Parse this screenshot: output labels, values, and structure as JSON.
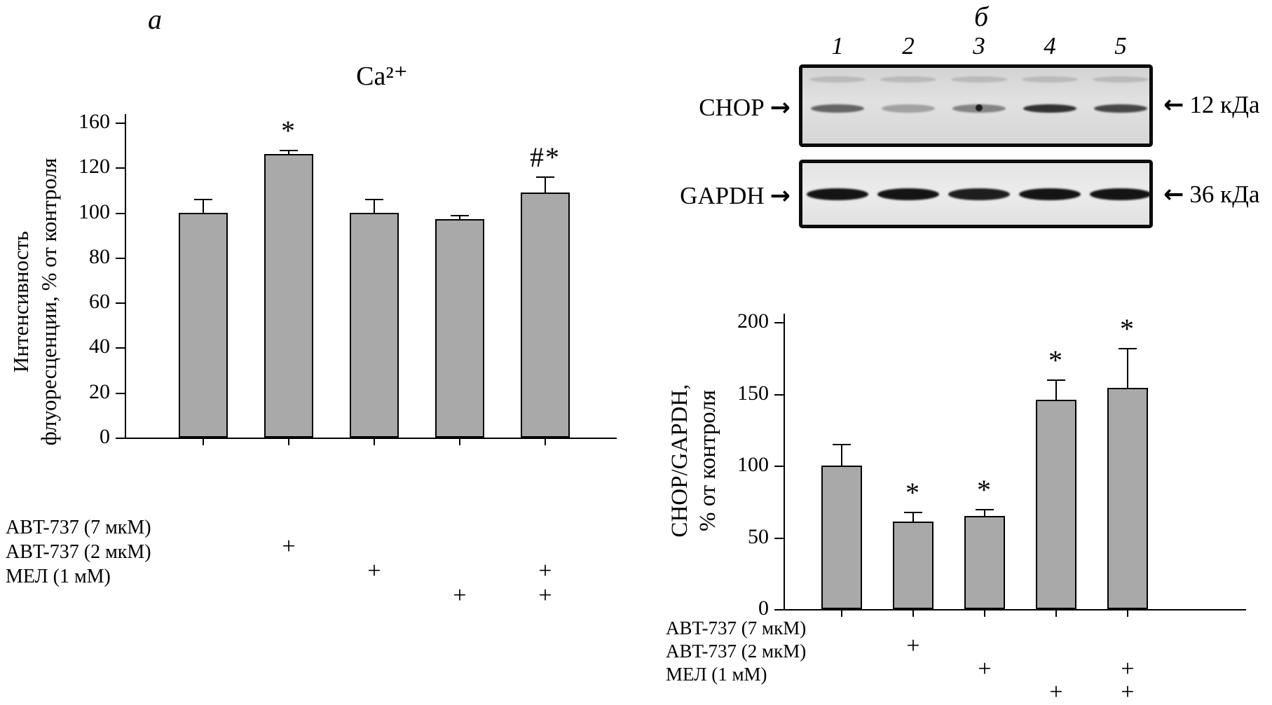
{
  "blot": {
    "lane_labels": [
      "1",
      "2",
      "3",
      "4",
      "5"
    ],
    "icons": {
      "right_arrow": "→",
      "left_arrow": "←"
    },
    "rows": [
      {
        "protein": "CHOP",
        "mass_label": "12 кДа",
        "band_opacity": [
          0.6,
          0.3,
          0.45,
          0.85,
          0.75
        ]
      },
      {
        "protein": "GAPDH",
        "mass_label": "36 кДа",
        "band_opacity": [
          1,
          1,
          0.95,
          1,
          1
        ]
      }
    ]
  },
  "chart_data": [
    {
      "type": "bar",
      "panel": "а",
      "title": "Ca²⁺",
      "ylabel": "Интенсивность флуоресценции, % от контроля",
      "ylabel_lines": [
        "Интенсивность",
        "флуоресценции, % от контроля"
      ],
      "yticks": [
        0,
        20,
        40,
        60,
        80,
        100,
        120,
        160
      ],
      "values": [
        100,
        132,
        100,
        97,
        109
      ],
      "errors": [
        6,
        4,
        6,
        2,
        7
      ],
      "significance": [
        "",
        "*",
        "",
        "",
        "#*"
      ],
      "bar_color": "#a9a9a9",
      "grid": false,
      "treatments": {
        "plus_mark": "+",
        "rows": [
          {
            "label": "ABT-737 (7 мкМ)",
            "applied": [
              false,
              true,
              false,
              false,
              false
            ]
          },
          {
            "label": "ABT-737 (2 мкМ)",
            "applied": [
              false,
              false,
              true,
              false,
              true
            ]
          },
          {
            "label": "МЕЛ (1 мМ)",
            "applied": [
              false,
              false,
              false,
              true,
              true
            ]
          }
        ]
      }
    },
    {
      "type": "bar",
      "panel": "б",
      "title": "",
      "ylabel": "CHOP/GAPDH, % от контроля",
      "ylabel_lines": [
        "CHOP/GAPDH,",
        "% от контроля"
      ],
      "yticks": [
        0,
        50,
        100,
        150,
        200
      ],
      "values": [
        100,
        61,
        65,
        146,
        154
      ],
      "errors": [
        15,
        7,
        5,
        14,
        28
      ],
      "significance": [
        "",
        "*",
        "*",
        "*",
        "*"
      ],
      "bar_color": "#a9a9a9",
      "grid": false,
      "treatments": {
        "plus_mark": "+",
        "rows": [
          {
            "label": "ABT-737 (7 мкМ)",
            "applied": [
              false,
              true,
              false,
              false,
              false
            ]
          },
          {
            "label": "ABT-737 (2 мкМ)",
            "applied": [
              false,
              false,
              true,
              false,
              true
            ]
          },
          {
            "label": "МЕЛ (1 мМ)",
            "applied": [
              false,
              false,
              false,
              true,
              true
            ]
          }
        ]
      }
    }
  ]
}
